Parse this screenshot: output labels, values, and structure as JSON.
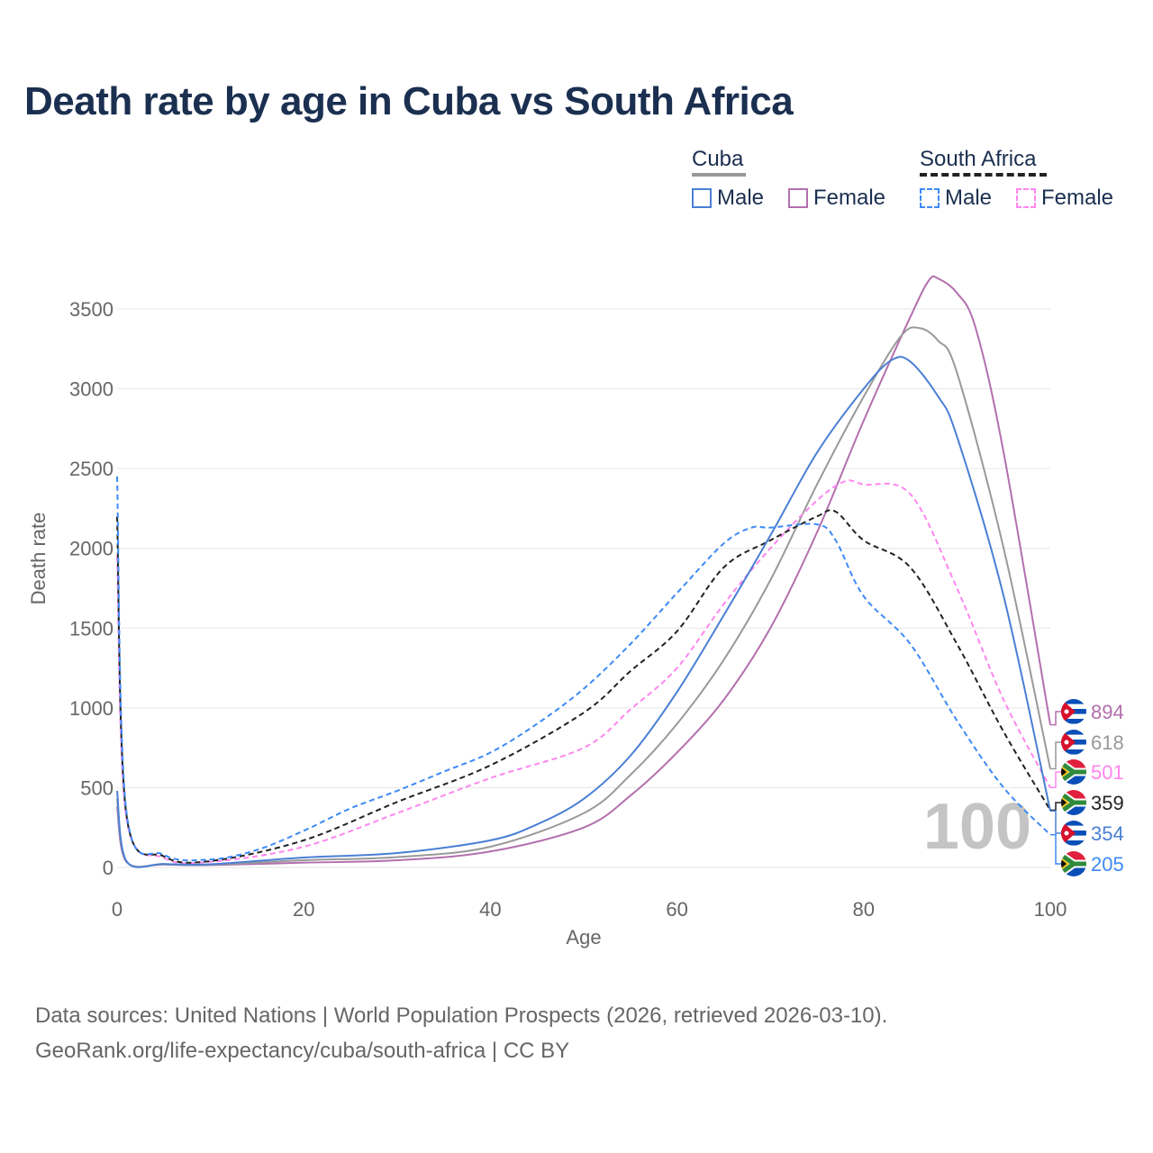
{
  "title": "Death rate by age in Cuba vs South Africa",
  "legend": {
    "groups": [
      {
        "name": "Cuba",
        "line_color": "#999999",
        "dashed": false,
        "items": [
          {
            "label": "Male",
            "color": "#4a7fd4",
            "dashed": false
          },
          {
            "label": "Female",
            "color": "#b36fae",
            "dashed": false
          }
        ]
      },
      {
        "name": "South Africa",
        "line_color": "#222222",
        "dashed": true,
        "items": [
          {
            "label": "Male",
            "color": "#3d8af7",
            "dashed": true
          },
          {
            "label": "Female",
            "color": "#ff85f0",
            "dashed": true
          }
        ]
      }
    ]
  },
  "source": {
    "line1": "Data sources: United Nations | World Population Prospects (2026, retrieved 2026-03-10).",
    "line2": "GeoRank.org/life-expectancy/cuba/south-africa | CC BY"
  },
  "chart_data": {
    "type": "line",
    "title": "Death rate by age in Cuba vs South Africa",
    "xlabel": "Age",
    "ylabel": "Death rate",
    "xlim": [
      0,
      100
    ],
    "ylim": [
      0,
      3700
    ],
    "xticks": [
      0,
      20,
      40,
      60,
      80,
      100
    ],
    "yticks": [
      0,
      500,
      1000,
      1500,
      2000,
      2500,
      3000,
      3500
    ],
    "grid": true,
    "watermark": "100",
    "series": [
      {
        "name": "Cuba Female",
        "country": "cuba",
        "color": "#b36fae",
        "dashed": false,
        "end_label": "894",
        "x": [
          0,
          1,
          5,
          10,
          20,
          30,
          40,
          50,
          55,
          60,
          65,
          70,
          75,
          80,
          85,
          87,
          88,
          90,
          92,
          95,
          100
        ],
        "y": [
          380,
          35,
          18,
          15,
          30,
          45,
          100,
          250,
          450,
          720,
          1050,
          1500,
          2100,
          2800,
          3450,
          3680,
          3690,
          3600,
          3380,
          2600,
          894
        ]
      },
      {
        "name": "Cuba Total",
        "country": "cuba",
        "color": "#999999",
        "dashed": false,
        "end_label": "618",
        "x": [
          0,
          1,
          5,
          10,
          20,
          30,
          40,
          50,
          55,
          60,
          65,
          70,
          75,
          80,
          84,
          86,
          88,
          90,
          95,
          100
        ],
        "y": [
          430,
          38,
          20,
          17,
          45,
          65,
          130,
          340,
          580,
          900,
          1300,
          1800,
          2400,
          2950,
          3330,
          3380,
          3300,
          3100,
          2000,
          618
        ]
      },
      {
        "name": "South Africa Female",
        "country": "south-africa",
        "color": "#ff85f0",
        "dashed": true,
        "end_label": "501",
        "x": [
          0,
          1,
          5,
          10,
          20,
          30,
          40,
          50,
          55,
          60,
          65,
          70,
          75,
          78,
          80,
          85,
          90,
          95,
          100
        ],
        "y": [
          1950,
          310,
          60,
          35,
          130,
          340,
          560,
          750,
          990,
          1250,
          1650,
          2000,
          2300,
          2420,
          2400,
          2340,
          1750,
          1050,
          501
        ]
      },
      {
        "name": "South Africa Total",
        "country": "south-africa",
        "color": "#222222",
        "dashed": true,
        "end_label": "359",
        "x": [
          0,
          1,
          5,
          10,
          20,
          30,
          40,
          50,
          55,
          60,
          65,
          70,
          75,
          77,
          80,
          85,
          90,
          95,
          100
        ],
        "y": [
          2200,
          330,
          70,
          40,
          170,
          410,
          640,
          970,
          1230,
          1480,
          1880,
          2050,
          2200,
          2230,
          2050,
          1880,
          1400,
          850,
          359
        ]
      },
      {
        "name": "Cuba Male",
        "country": "cuba",
        "color": "#4a7fd4",
        "dashed": false,
        "end_label": "354",
        "x": [
          0,
          1,
          5,
          10,
          20,
          30,
          40,
          45,
          50,
          55,
          60,
          65,
          70,
          75,
          80,
          83,
          85,
          88,
          90,
          95,
          100
        ],
        "y": [
          480,
          40,
          22,
          20,
          62,
          90,
          170,
          270,
          430,
          700,
          1100,
          1580,
          2080,
          2600,
          3000,
          3180,
          3170,
          2950,
          2700,
          1700,
          354
        ]
      },
      {
        "name": "South Africa Male",
        "country": "south-africa",
        "color": "#3d8af7",
        "dashed": true,
        "end_label": "205",
        "x": [
          0,
          1,
          5,
          10,
          15,
          20,
          25,
          30,
          35,
          40,
          45,
          50,
          55,
          60,
          65,
          68,
          70,
          75,
          77,
          80,
          85,
          90,
          95,
          100
        ],
        "y": [
          2450,
          350,
          80,
          50,
          110,
          230,
          370,
          480,
          600,
          720,
          900,
          1120,
          1400,
          1720,
          2030,
          2130,
          2130,
          2150,
          2050,
          1700,
          1400,
          920,
          500,
          205
        ]
      }
    ]
  }
}
